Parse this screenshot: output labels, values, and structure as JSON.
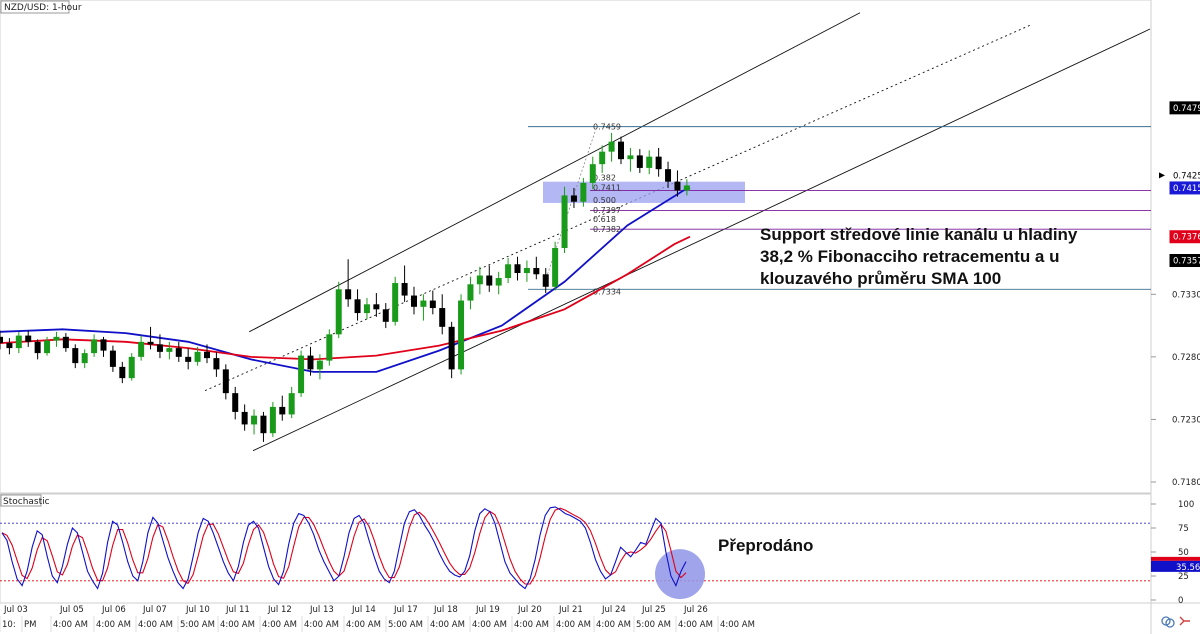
{
  "chart_data": {
    "type": "candlestick",
    "symbol_label": "NZD/USD: 1-hour",
    "price_axis": {
      "ticks": [
        "0.7479",
        "0.7425",
        "0.7415",
        "0.7376",
        "0.7357",
        "0.7330",
        "0.7280",
        "0.7230",
        "0.7180"
      ],
      "ylim": [
        0.7172,
        0.7562
      ]
    },
    "price_tags": [
      {
        "label": "0.7479",
        "value": 0.7479,
        "bg": "#000000",
        "fg": "#ffffff"
      },
      {
        "label": "0.7425",
        "value": 0.7425,
        "bg": "#ffffff",
        "fg": "#000000",
        "arrow": true
      },
      {
        "label": "0.7415",
        "value": 0.7415,
        "bg": "#1a1ad6",
        "fg": "#ffffff"
      },
      {
        "label": "0.7376",
        "value": 0.7376,
        "bg": "#e0001a",
        "fg": "#ffffff"
      },
      {
        "label": "0.7357",
        "value": 0.7357,
        "bg": "#000000",
        "fg": "#ffffff"
      }
    ],
    "plain_ticks": [
      {
        "label": "0.7330",
        "value": 0.733
      },
      {
        "label": "0.7280",
        "value": 0.728
      },
      {
        "label": "0.7230",
        "value": 0.723
      },
      {
        "label": "0.7180",
        "value": 0.718
      }
    ],
    "x_dates": [
      "Jul 03",
      "Jul 05",
      "Jul 06",
      "Jul 07",
      "Jul 10",
      "Jul 11",
      "Jul 12",
      "Jul 13",
      "Jul 14",
      "Jul 17",
      "Jul 18",
      "Jul 19",
      "Jul 20",
      "Jul 21",
      "Jul 24",
      "Jul 25",
      "Jul 26"
    ],
    "x_times": [
      "10:",
      "PM",
      "4:00 AM",
      "4:00 AM",
      "4:00 AM",
      "5:00 AM",
      "4:00 AM",
      "4:00 AM",
      "4:00 AM",
      "4:00 AM",
      "5:00 AM",
      "4:00 AM",
      "4:00 AM",
      "4:00 AM",
      "4:00 AM",
      "4:00 AM",
      "5:00 AM",
      "4:00 AM",
      "4:00 AM"
    ],
    "fibonacci": {
      "levels": [
        {
          "ratio": "0.382",
          "price": "0.7411"
        },
        {
          "ratio": "0.500",
          "price": "0.7397"
        },
        {
          "ratio": "0.618",
          "price": "0.7382"
        }
      ],
      "high_label": "0.7459",
      "low_label": "0.7334"
    },
    "ma_series": [
      {
        "kind": "SMA 100",
        "color": "#1010c8",
        "points": [
          [
            0,
            0.73
          ],
          [
            20,
            0.7302
          ],
          [
            40,
            0.7299
          ],
          [
            60,
            0.7292
          ],
          [
            80,
            0.7278
          ],
          [
            100,
            0.7268
          ],
          [
            120,
            0.7268
          ],
          [
            140,
            0.7285
          ],
          [
            160,
            0.7305
          ],
          [
            180,
            0.734
          ],
          [
            200,
            0.7385
          ],
          [
            218,
            0.7413
          ],
          [
            220,
            0.7415
          ]
        ]
      },
      {
        "kind": "SMA 200",
        "color": "#e0001a",
        "points": [
          [
            0,
            0.7291
          ],
          [
            20,
            0.7294
          ],
          [
            40,
            0.7292
          ],
          [
            60,
            0.7287
          ],
          [
            80,
            0.728
          ],
          [
            100,
            0.7278
          ],
          [
            120,
            0.7281
          ],
          [
            140,
            0.7289
          ],
          [
            160,
            0.7301
          ],
          [
            180,
            0.7318
          ],
          [
            200,
            0.7346
          ],
          [
            215,
            0.737
          ],
          [
            220,
            0.7376
          ]
        ]
      }
    ],
    "candles": [
      [
        0,
        0.7296,
        0.7301,
        0.7286,
        0.7291
      ],
      [
        3,
        0.7291,
        0.7295,
        0.7282,
        0.7287
      ],
      [
        6,
        0.7287,
        0.73,
        0.7283,
        0.7297
      ],
      [
        9,
        0.7297,
        0.7301,
        0.7288,
        0.7292
      ],
      [
        12,
        0.7292,
        0.7294,
        0.7278,
        0.7283
      ],
      [
        15,
        0.7283,
        0.7296,
        0.7281,
        0.7293
      ],
      [
        18,
        0.7293,
        0.73,
        0.7288,
        0.7296
      ],
      [
        21,
        0.7296,
        0.7299,
        0.7284,
        0.7287
      ],
      [
        24,
        0.7287,
        0.729,
        0.7271,
        0.7275
      ],
      [
        27,
        0.7275,
        0.7286,
        0.7271,
        0.7283
      ],
      [
        30,
        0.7283,
        0.7298,
        0.728,
        0.7294
      ],
      [
        33,
        0.7294,
        0.7296,
        0.728,
        0.7285
      ],
      [
        36,
        0.7285,
        0.7289,
        0.7268,
        0.7272
      ],
      [
        39,
        0.7272,
        0.7276,
        0.7259,
        0.7263
      ],
      [
        42,
        0.7263,
        0.7283,
        0.7261,
        0.728
      ],
      [
        45,
        0.728,
        0.7297,
        0.7277,
        0.7292
      ],
      [
        48,
        0.7292,
        0.7304,
        0.7286,
        0.729
      ],
      [
        51,
        0.729,
        0.7298,
        0.7279,
        0.7284
      ],
      [
        54,
        0.7284,
        0.7292,
        0.7278,
        0.7287
      ],
      [
        57,
        0.7287,
        0.7292,
        0.7276,
        0.728
      ],
      [
        60,
        0.728,
        0.7287,
        0.727,
        0.7276
      ],
      [
        63,
        0.7276,
        0.7288,
        0.7273,
        0.7284
      ],
      [
        66,
        0.7284,
        0.729,
        0.7275,
        0.7279
      ],
      [
        69,
        0.7279,
        0.7284,
        0.7264,
        0.727
      ],
      [
        72,
        0.727,
        0.7274,
        0.7246,
        0.7251
      ],
      [
        75,
        0.7251,
        0.7256,
        0.723,
        0.7236
      ],
      [
        78,
        0.7236,
        0.7242,
        0.7221,
        0.7226
      ],
      [
        81,
        0.7226,
        0.7238,
        0.7218,
        0.7233
      ],
      [
        84,
        0.7233,
        0.7236,
        0.7212,
        0.7219
      ],
      [
        87,
        0.7219,
        0.7244,
        0.7216,
        0.724
      ],
      [
        90,
        0.724,
        0.7249,
        0.7229,
        0.7234
      ],
      [
        93,
        0.7234,
        0.7256,
        0.7231,
        0.7251
      ],
      [
        96,
        0.7251,
        0.7285,
        0.7248,
        0.7281
      ],
      [
        99,
        0.7281,
        0.7288,
        0.7265,
        0.727
      ],
      [
        102,
        0.727,
        0.7282,
        0.7262,
        0.7277
      ],
      [
        105,
        0.7277,
        0.7302,
        0.7273,
        0.7298
      ],
      [
        108,
        0.7298,
        0.734,
        0.7295,
        0.7334
      ],
      [
        111,
        0.7334,
        0.7358,
        0.732,
        0.7326
      ],
      [
        114,
        0.7326,
        0.7334,
        0.7309,
        0.7315
      ],
      [
        117,
        0.7315,
        0.7327,
        0.731,
        0.7322
      ],
      [
        120,
        0.7322,
        0.7331,
        0.7312,
        0.7318
      ],
      [
        123,
        0.7318,
        0.7323,
        0.7303,
        0.7308
      ],
      [
        126,
        0.7308,
        0.7344,
        0.7305,
        0.7339
      ],
      [
        129,
        0.7339,
        0.7353,
        0.7324,
        0.7329
      ],
      [
        132,
        0.7329,
        0.7336,
        0.7314,
        0.732
      ],
      [
        135,
        0.732,
        0.733,
        0.7309,
        0.7325
      ],
      [
        138,
        0.7325,
        0.7333,
        0.7314,
        0.7319
      ],
      [
        141,
        0.7319,
        0.733,
        0.7298,
        0.7304
      ],
      [
        144,
        0.7304,
        0.7308,
        0.7263,
        0.727
      ],
      [
        147,
        0.727,
        0.733,
        0.7266,
        0.7325
      ],
      [
        150,
        0.7325,
        0.7344,
        0.7318,
        0.7338
      ],
      [
        153,
        0.7338,
        0.7352,
        0.733,
        0.7345
      ],
      [
        156,
        0.7345,
        0.7353,
        0.7332,
        0.7337
      ],
      [
        159,
        0.7337,
        0.7348,
        0.733,
        0.7343
      ],
      [
        162,
        0.7343,
        0.7359,
        0.7339,
        0.7354
      ],
      [
        165,
        0.7354,
        0.736,
        0.7341,
        0.7347
      ],
      [
        168,
        0.7347,
        0.7357,
        0.734,
        0.7351
      ],
      [
        171,
        0.7351,
        0.736,
        0.7342,
        0.7346
      ],
      [
        174,
        0.7346,
        0.7351,
        0.7331,
        0.7336
      ],
      [
        177,
        0.7336,
        0.7372,
        0.7333,
        0.7367
      ],
      [
        180,
        0.7367,
        0.7416,
        0.7363,
        0.7409
      ],
      [
        183,
        0.7409,
        0.7415,
        0.7399,
        0.7404
      ],
      [
        186,
        0.7404,
        0.7423,
        0.74,
        0.7419
      ],
      [
        189,
        0.7419,
        0.744,
        0.7414,
        0.7434
      ],
      [
        192,
        0.7434,
        0.7449,
        0.7427,
        0.7444
      ],
      [
        195,
        0.7444,
        0.7459,
        0.7436,
        0.7452
      ],
      [
        198,
        0.7452,
        0.7456,
        0.7434,
        0.7438
      ],
      [
        201,
        0.7438,
        0.7447,
        0.7428,
        0.7441
      ],
      [
        204,
        0.7441,
        0.7446,
        0.7427,
        0.7431
      ],
      [
        207,
        0.7431,
        0.7445,
        0.7426,
        0.744
      ],
      [
        210,
        0.744,
        0.7447,
        0.7424,
        0.743
      ],
      [
        213,
        0.743,
        0.7436,
        0.7415,
        0.742
      ],
      [
        216,
        0.742,
        0.7429,
        0.7408,
        0.7413
      ],
      [
        219,
        0.7413,
        0.7422,
        0.7409,
        0.7417
      ]
    ],
    "channel": {
      "upper": [
        [
          38,
          0.73
        ],
        [
          225,
          0.755
        ]
      ],
      "middle": [
        [
          60,
          0.7253
        ],
        [
          245,
          0.7545
        ]
      ],
      "lower": [
        [
          75,
          0.7205
        ],
        [
          280,
          0.7542
        ]
      ]
    },
    "oversold_zone": [
      0.7403,
      0.742
    ],
    "stochastic": {
      "label": "Stochastic",
      "ticks": [
        "100",
        "75",
        "50",
        "25",
        "0"
      ],
      "levels": [
        80,
        20
      ],
      "value_tags": [
        {
          "label": "35.56",
          "value": 35.56
        }
      ],
      "k": [
        70,
        62,
        40,
        22,
        15,
        30,
        55,
        72,
        68,
        45,
        25,
        18,
        35,
        58,
        75,
        70,
        50,
        30,
        20,
        12,
        28,
        60,
        82,
        78,
        60,
        40,
        25,
        20,
        40,
        70,
        86,
        80,
        62,
        44,
        30,
        18,
        12,
        22,
        45,
        70,
        85,
        82,
        70,
        55,
        40,
        28,
        20,
        35,
        60,
        78,
        82,
        75,
        55,
        35,
        22,
        16,
        30,
        58,
        80,
        90,
        88,
        80,
        68,
        52,
        40,
        30,
        20,
        25,
        45,
        70,
        85,
        88,
        80,
        62,
        45,
        30,
        22,
        18,
        30,
        55,
        80,
        92,
        94,
        88,
        78,
        70,
        60,
        48,
        38,
        30,
        26,
        24,
        30,
        46,
        72,
        90,
        95,
        92,
        80,
        60,
        40,
        28,
        22,
        16,
        12,
        22,
        42,
        68,
        88,
        96,
        97,
        94,
        90,
        88,
        85,
        82,
        75,
        60,
        42,
        30,
        22,
        26,
        40,
        55,
        50,
        45,
        52,
        60,
        58,
        72,
        85,
        80,
        50,
        25,
        15,
        30,
        40
      ]
    },
    "annotations": [
      {
        "id": "support",
        "lines": [
          "Support středové linie kanálu u hladiny",
          "38,2 % Fibonacciho retracementu a u",
          "klouzavého průměru SMA 100"
        ]
      },
      {
        "id": "oversold",
        "lines": [
          "Přeprodáno"
        ]
      }
    ],
    "colors": {
      "bull_candle": "#1a9a1a",
      "bear_candle": "#000000",
      "sma100": "#1010c8",
      "sma200": "#e0001a",
      "fib_box": "#9aa0f0",
      "fib_line": "#7a1a9a",
      "stoch_k": "#1010c8",
      "stoch_d": "#e0001a",
      "oversold_circle": "#8f95e8"
    }
  }
}
